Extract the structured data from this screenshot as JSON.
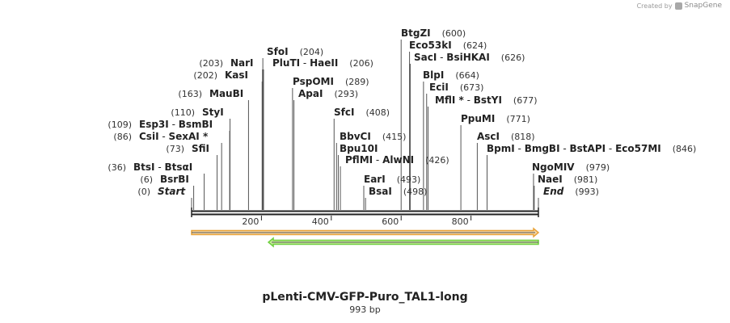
{
  "credit": {
    "prefix": "Created by",
    "brand": "SnapGene"
  },
  "plasmid": {
    "name": "pLenti-CMV-GFP-Puro_TAL1-long",
    "length_label": "993 bp",
    "length": 993
  },
  "colors": {
    "backbone": "#222222",
    "feature1_fill": "#f7d9a8",
    "feature1_border": "#e8a33a",
    "feature2_fill": "#c9ee9a",
    "feature2_border": "#6fcf3f",
    "leader": "#555555"
  },
  "ruler": {
    "ticks": [
      200,
      400,
      600,
      800
    ]
  },
  "features": [
    {
      "name": "forward-feature",
      "start": 0,
      "end": 993,
      "direction": "forward"
    },
    {
      "name": "reverse-feature",
      "start": 220,
      "end": 993,
      "direction": "reverse"
    }
  ],
  "sites": [
    {
      "id": "btgzi",
      "label_parts": [
        {
          "text": "BtgZI",
          "bold": true
        }
      ],
      "pos_label": "(600)",
      "pos_side": "right",
      "pos": 600
    },
    {
      "id": "eco53ki",
      "label_parts": [
        {
          "text": "Eco53kI",
          "bold": true
        }
      ],
      "pos_label": "(624)",
      "pos_side": "right",
      "pos": 624
    },
    {
      "id": "saci",
      "label_parts": [
        {
          "text": "SacI",
          "bold": true
        },
        {
          "text": " - "
        },
        {
          "text": "BsiHKAI",
          "bold": true
        }
      ],
      "pos_label": "(626)",
      "pos_side": "right",
      "pos": 626
    },
    {
      "id": "sfoi",
      "label_parts": [
        {
          "text": "SfoI",
          "bold": true
        }
      ],
      "pos_label": "(204)",
      "pos_side": "right",
      "pos": 204
    },
    {
      "id": "nari",
      "label_parts": [
        {
          "text": "NarI",
          "bold": true
        }
      ],
      "pos_label": "(203)",
      "pos_side": "left",
      "pos": 203
    },
    {
      "id": "plutI",
      "label_parts": [
        {
          "text": "PluTI",
          "bold": true
        },
        {
          "text": " - "
        },
        {
          "text": "HaeII",
          "bold": true
        }
      ],
      "pos_label": "(206)",
      "pos_side": "right",
      "pos": 206
    },
    {
      "id": "kasi",
      "label_parts": [
        {
          "text": "KasI",
          "bold": true
        }
      ],
      "pos_label": "(202)",
      "pos_side": "left",
      "pos": 202
    },
    {
      "id": "blpi",
      "label_parts": [
        {
          "text": "BlpI",
          "bold": true
        }
      ],
      "pos_label": "(664)",
      "pos_side": "right",
      "pos": 664
    },
    {
      "id": "pspomi",
      "label_parts": [
        {
          "text": "PspOMI",
          "bold": true
        }
      ],
      "pos_label": "(289)",
      "pos_side": "right",
      "pos": 289
    },
    {
      "id": "ecii",
      "label_parts": [
        {
          "text": "EciI",
          "bold": true
        }
      ],
      "pos_label": "(673)",
      "pos_side": "right",
      "pos": 673
    },
    {
      "id": "maubi",
      "label_parts": [
        {
          "text": "MauBI",
          "bold": true
        }
      ],
      "pos_label": "(163)",
      "pos_side": "left",
      "pos": 163
    },
    {
      "id": "apai",
      "label_parts": [
        {
          "text": "ApaI",
          "bold": true
        }
      ],
      "pos_label": "(293)",
      "pos_side": "right",
      "pos": 293
    },
    {
      "id": "mfli",
      "label_parts": [
        {
          "text": "MflI *",
          "bold": true
        },
        {
          "text": " - "
        },
        {
          "text": "BstYI",
          "bold": true
        }
      ],
      "pos_label": "(677)",
      "pos_side": "right",
      "pos": 677
    },
    {
      "id": "styi",
      "label_parts": [
        {
          "text": "StyI",
          "bold": true
        }
      ],
      "pos_label": "(110)",
      "pos_side": "left",
      "pos": 110
    },
    {
      "id": "sfci",
      "label_parts": [
        {
          "text": "SfcI",
          "bold": true
        }
      ],
      "pos_label": "(408)",
      "pos_side": "right",
      "pos": 408
    },
    {
      "id": "ppumi",
      "label_parts": [
        {
          "text": "PpuMI",
          "bold": true
        }
      ],
      "pos_label": "(771)",
      "pos_side": "right",
      "pos": 771
    },
    {
      "id": "esp3i",
      "label_parts": [
        {
          "text": "Esp3I",
          "bold": true
        },
        {
          "text": " - "
        },
        {
          "text": "BsmBI",
          "bold": true
        }
      ],
      "pos_label": "(109)",
      "pos_side": "left",
      "pos": 109
    },
    {
      "id": "csii",
      "label_parts": [
        {
          "text": "CsiI",
          "bold": true
        },
        {
          "text": " - "
        },
        {
          "text": "SexAI *",
          "bold": true
        }
      ],
      "pos_label": "(86)",
      "pos_side": "left",
      "pos": 86
    },
    {
      "id": "bbvci",
      "label_parts": [
        {
          "text": "BbvCI",
          "bold": true
        }
      ],
      "pos_label": "(415)",
      "pos_side": "right",
      "pos": 415
    },
    {
      "id": "asci",
      "label_parts": [
        {
          "text": "AscI",
          "bold": true
        }
      ],
      "pos_label": "(818)",
      "pos_side": "right",
      "pos": 818
    },
    {
      "id": "sfii",
      "label_parts": [
        {
          "text": "SfiI",
          "bold": true
        }
      ],
      "pos_label": "(73)",
      "pos_side": "left",
      "pos": 73
    },
    {
      "id": "bpu10i",
      "label_parts": [
        {
          "text": "Bpu10I",
          "bold": true
        }
      ],
      "pos_label": "",
      "pos_side": "right",
      "pos": 420
    },
    {
      "id": "bpmi",
      "label_parts": [
        {
          "text": "BpmI",
          "bold": true
        },
        {
          "text": " - "
        },
        {
          "text": "BmgBI",
          "bold": true
        },
        {
          "text": " - "
        },
        {
          "text": "BstAPI",
          "bold": true
        },
        {
          "text": " - "
        },
        {
          "text": "Eco57MI",
          "bold": true
        }
      ],
      "pos_label": "(846)",
      "pos_side": "right",
      "pos": 846
    },
    {
      "id": "pflmi",
      "label_parts": [
        {
          "text": "PflMI",
          "bold": true
        },
        {
          "text": " - "
        },
        {
          "text": "AlwNI",
          "bold": true
        }
      ],
      "pos_label": "(426)",
      "pos_side": "right",
      "pos": 426
    },
    {
      "id": "btsi",
      "label_parts": [
        {
          "text": "BtsI",
          "bold": true
        },
        {
          "text": " - "
        },
        {
          "text": "BtsαI",
          "bold": true
        }
      ],
      "pos_label": "(36)",
      "pos_side": "left",
      "pos": 36
    },
    {
      "id": "ngomiv",
      "label_parts": [
        {
          "text": "NgoMIV",
          "bold": true
        }
      ],
      "pos_label": "(979)",
      "pos_side": "right",
      "pos": 979
    },
    {
      "id": "eari",
      "label_parts": [
        {
          "text": "EarI",
          "bold": true
        }
      ],
      "pos_label": "(493)",
      "pos_side": "right",
      "pos": 493
    },
    {
      "id": "bsrbi",
      "label_parts": [
        {
          "text": "BsrBI",
          "bold": true
        }
      ],
      "pos_label": "(6)",
      "pos_side": "left",
      "pos": 6
    },
    {
      "id": "naei",
      "label_parts": [
        {
          "text": "NaeI",
          "bold": true
        }
      ],
      "pos_label": "(981)",
      "pos_side": "right",
      "pos": 981
    },
    {
      "id": "bsai",
      "label_parts": [
        {
          "text": "BsaI",
          "bold": true
        }
      ],
      "pos_label": "(498)",
      "pos_side": "right",
      "pos": 498
    },
    {
      "id": "start",
      "label_parts": [
        {
          "text": "Start",
          "bold": true,
          "italic": true
        }
      ],
      "pos_label": "(0)",
      "pos_side": "left",
      "pos": 0
    },
    {
      "id": "end",
      "label_parts": [
        {
          "text": "End",
          "bold": true,
          "italic": true
        }
      ],
      "pos_label": "(993)",
      "pos_side": "right",
      "pos": 993
    }
  ]
}
